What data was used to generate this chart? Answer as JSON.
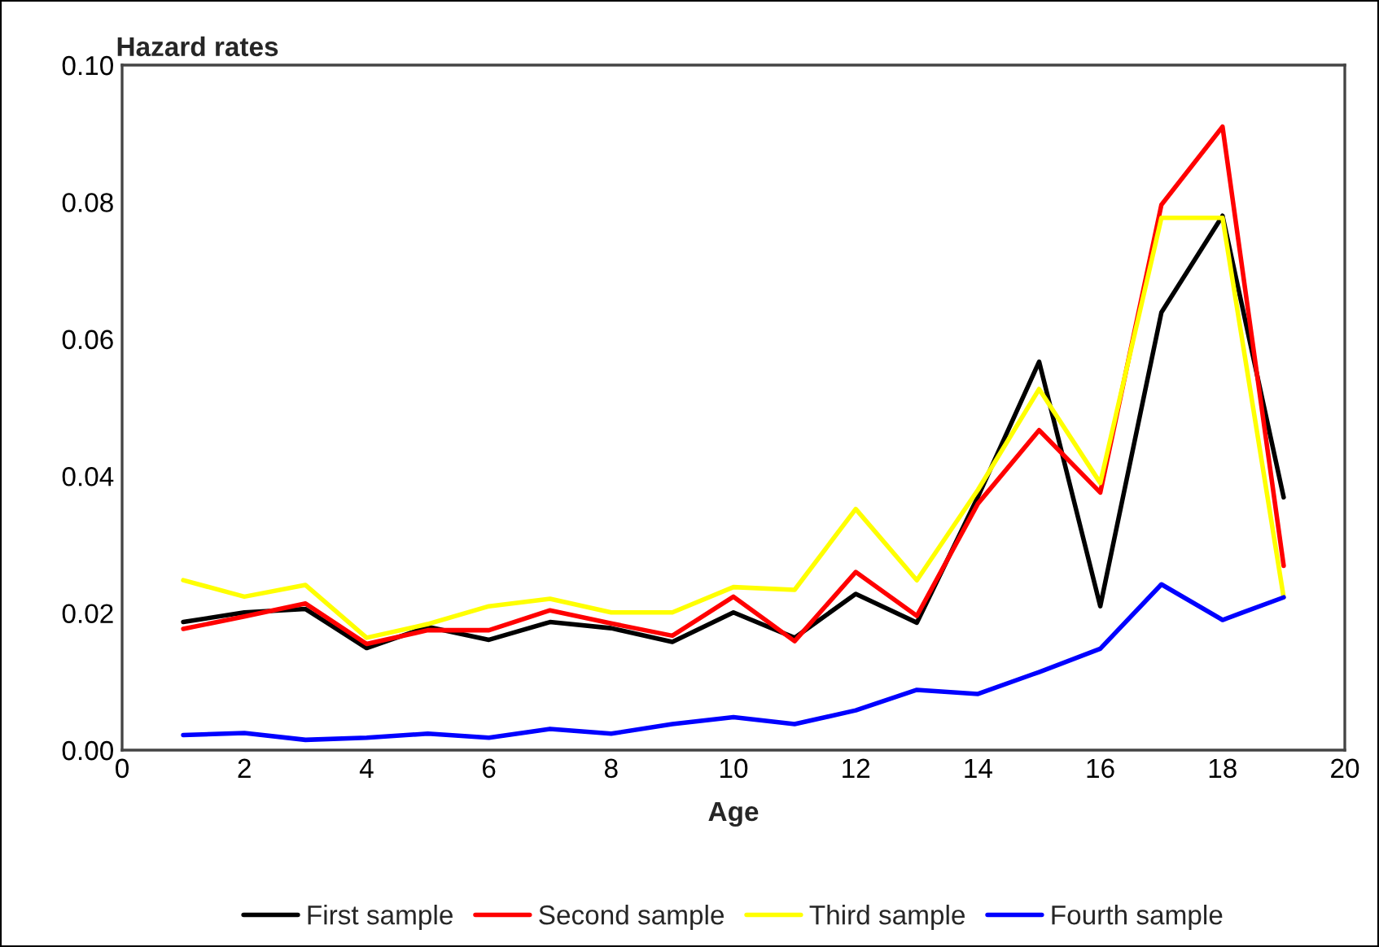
{
  "chart_data": {
    "type": "line",
    "xlabel": "Age",
    "ylabel": "Hazard rates",
    "x": [
      1,
      2,
      3,
      4,
      5,
      6,
      7,
      8,
      9,
      10,
      11,
      12,
      13,
      14,
      15,
      16,
      17,
      18,
      19
    ],
    "series": [
      {
        "name": "First sample",
        "color": "#000000",
        "values": [
          0.0187,
          0.0201,
          0.0206,
          0.0149,
          0.018,
          0.0161,
          0.0187,
          0.0178,
          0.0158,
          0.0201,
          0.0164,
          0.0228,
          0.0186,
          0.037,
          0.0567,
          0.021,
          0.0639,
          0.078,
          0.0369
        ]
      },
      {
        "name": "Second sample",
        "color": "#ff0000",
        "values": [
          0.0177,
          0.0195,
          0.0214,
          0.0155,
          0.0175,
          0.0175,
          0.0204,
          0.0185,
          0.0167,
          0.0224,
          0.0159,
          0.026,
          0.0196,
          0.036,
          0.0467,
          0.0376,
          0.0796,
          0.091,
          0.0269
        ]
      },
      {
        "name": "Third sample",
        "color": "#ffff00",
        "values": [
          0.0248,
          0.0224,
          0.0241,
          0.0164,
          0.0184,
          0.021,
          0.0221,
          0.0201,
          0.0201,
          0.0238,
          0.0234,
          0.0352,
          0.0248,
          0.038,
          0.0527,
          0.039,
          0.0777,
          0.0777,
          0.0223
        ]
      },
      {
        "name": "Fourth sample",
        "color": "#0000ff",
        "values": [
          0.0022,
          0.0025,
          0.0015,
          0.0018,
          0.0024,
          0.0018,
          0.0031,
          0.0024,
          0.0038,
          0.0048,
          0.0038,
          0.0058,
          0.0088,
          0.0082,
          0.0114,
          0.0148,
          0.0242,
          0.019,
          0.0223
        ]
      }
    ],
    "xlim": [
      0,
      20
    ],
    "xticks": [
      0,
      2,
      4,
      6,
      8,
      10,
      12,
      14,
      16,
      18,
      20
    ],
    "ylim": [
      0,
      0.1
    ],
    "yticks": [
      {
        "value": 0,
        "label": "0.00"
      },
      {
        "value": 0.02,
        "label": "0.02"
      },
      {
        "value": 0.04,
        "label": "0.04"
      },
      {
        "value": 0.06,
        "label": "0.06"
      },
      {
        "value": 0.08,
        "label": "0.08"
      },
      {
        "value": 0.1,
        "label": "0.10"
      }
    ],
    "grid": false,
    "legend": "bottom",
    "marker": "none",
    "line_style": "solid"
  }
}
